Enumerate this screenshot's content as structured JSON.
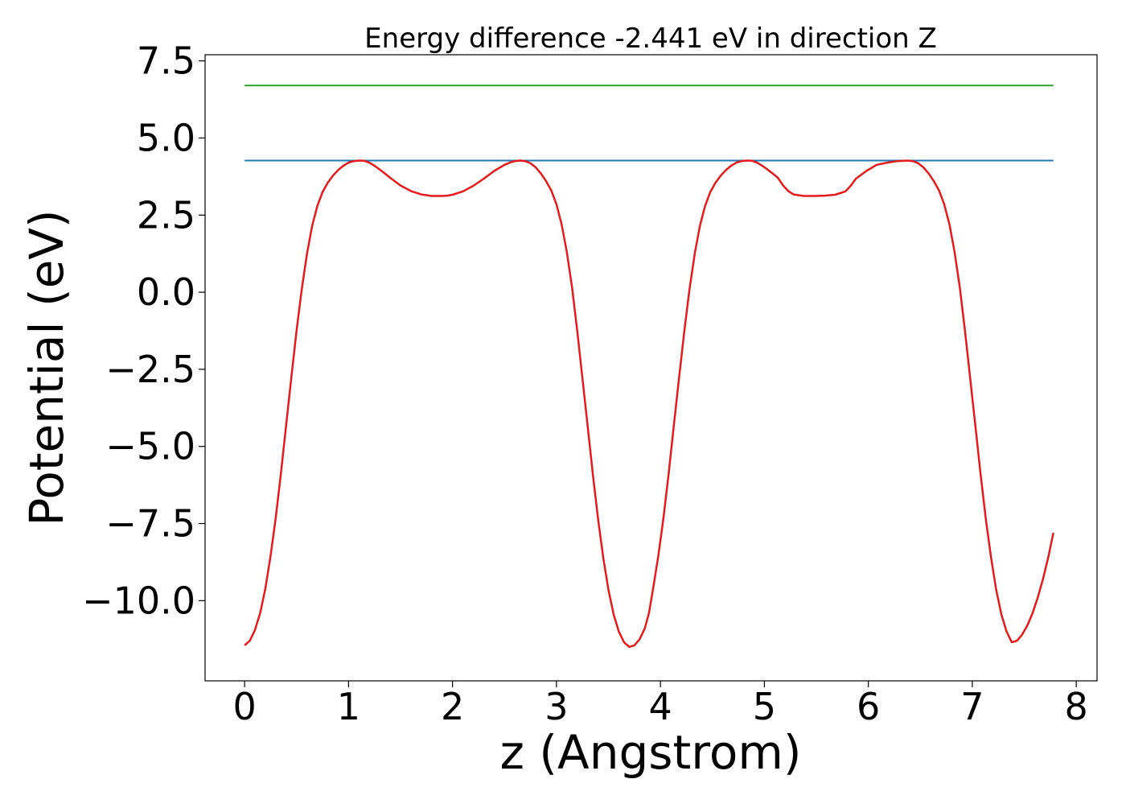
{
  "chart_data": {
    "type": "line",
    "title": "Energy difference -2.441 eV in direction Z",
    "xlabel": "z (Angstrom)",
    "ylabel": "Potential (eV)",
    "xlim": [
      -0.38,
      8.2
    ],
    "ylim": [
      -12.6,
      7.7
    ],
    "x_ticks": [
      0,
      1,
      2,
      3,
      4,
      5,
      6,
      7,
      8
    ],
    "x_tick_labels": [
      "0",
      "1",
      "2",
      "3",
      "4",
      "5",
      "6",
      "7",
      "8"
    ],
    "y_ticks": [
      7.5,
      5.0,
      2.5,
      0.0,
      -2.5,
      -5.0,
      -7.5,
      -10.0
    ],
    "y_tick_labels": [
      "7.5",
      "5.0",
      "2.5",
      "0.0",
      "−2.5",
      "−5.0",
      "−7.5",
      "−10.0"
    ],
    "grid": false,
    "series": [
      {
        "color": "#2ca02c",
        "x": [
          0,
          7.78
        ],
        "y": [
          6.7,
          6.7
        ]
      },
      {
        "color": "#1f77b4",
        "x": [
          0,
          7.78
        ],
        "y": [
          4.27,
          4.27
        ]
      },
      {
        "color": "#e41a1c",
        "x": [
          0.0,
          0.05,
          0.1,
          0.15,
          0.2,
          0.25,
          0.3,
          0.35,
          0.4,
          0.45,
          0.5,
          0.55,
          0.6,
          0.65,
          0.7,
          0.75,
          0.8,
          0.85,
          0.9,
          0.95,
          1.0,
          1.05,
          1.1,
          1.15,
          1.2,
          1.25,
          1.3,
          1.35,
          1.4,
          1.5,
          1.6,
          1.7,
          1.8,
          1.9,
          1.95,
          2.0,
          2.1,
          2.2,
          2.3,
          2.4,
          2.5,
          2.55,
          2.6,
          2.65,
          2.7,
          2.75,
          2.8,
          2.85,
          2.9,
          2.95,
          3.0,
          3.05,
          3.1,
          3.15,
          3.2,
          3.25,
          3.3,
          3.35,
          3.4,
          3.45,
          3.5,
          3.55,
          3.6,
          3.65,
          3.7,
          3.75,
          3.8,
          3.85,
          3.89,
          3.93,
          3.98,
          4.03,
          4.08,
          4.13,
          4.18,
          4.23,
          4.28,
          4.33,
          4.38,
          4.43,
          4.48,
          4.53,
          4.58,
          4.63,
          4.68,
          4.73,
          4.78,
          4.83,
          4.88,
          4.93,
          4.98,
          5.03,
          5.08,
          5.13,
          5.18,
          5.23,
          5.28,
          5.38,
          5.48,
          5.58,
          5.68,
          5.78,
          5.83,
          5.88,
          5.98,
          6.08,
          6.18,
          6.28,
          6.38,
          6.43,
          6.48,
          6.53,
          6.58,
          6.63,
          6.68,
          6.73,
          6.78,
          6.83,
          6.88,
          6.93,
          6.98,
          7.03,
          7.08,
          7.13,
          7.18,
          7.23,
          7.28,
          7.33,
          7.38,
          7.43,
          7.48,
          7.53,
          7.58,
          7.63,
          7.68,
          7.73,
          7.78
        ],
        "y": [
          -11.45,
          -11.3,
          -10.95,
          -10.4,
          -9.6,
          -8.55,
          -7.3,
          -5.85,
          -4.3,
          -2.75,
          -1.25,
          0.1,
          1.25,
          2.15,
          2.8,
          3.25,
          3.55,
          3.78,
          3.96,
          4.1,
          4.2,
          4.25,
          4.27,
          4.26,
          4.2,
          4.1,
          3.98,
          3.85,
          3.71,
          3.46,
          3.28,
          3.17,
          3.12,
          3.12,
          3.13,
          3.16,
          3.27,
          3.45,
          3.68,
          3.93,
          4.13,
          4.2,
          4.25,
          4.27,
          4.25,
          4.18,
          4.05,
          3.85,
          3.6,
          3.3,
          2.85,
          2.2,
          1.3,
          0.15,
          -1.25,
          -2.8,
          -4.35,
          -5.9,
          -7.35,
          -8.6,
          -9.65,
          -10.45,
          -11.0,
          -11.35,
          -11.5,
          -11.45,
          -11.25,
          -10.9,
          -10.4,
          -9.6,
          -8.55,
          -7.3,
          -5.85,
          -4.3,
          -2.75,
          -1.25,
          0.1,
          1.25,
          2.15,
          2.8,
          3.25,
          3.55,
          3.78,
          3.96,
          4.1,
          4.2,
          4.25,
          4.27,
          4.26,
          4.2,
          4.1,
          3.98,
          3.85,
          3.71,
          3.46,
          3.28,
          3.17,
          3.12,
          3.12,
          3.13,
          3.16,
          3.27,
          3.45,
          3.68,
          3.93,
          4.13,
          4.2,
          4.25,
          4.27,
          4.25,
          4.18,
          4.05,
          3.85,
          3.6,
          3.3,
          2.85,
          2.2,
          1.3,
          0.15,
          -1.25,
          -2.8,
          -4.35,
          -5.9,
          -7.35,
          -8.6,
          -9.65,
          -10.45,
          -11.0,
          -11.35,
          -11.3,
          -11.1,
          -10.8,
          -10.4,
          -9.9,
          -9.3,
          -8.6,
          -7.8
        ]
      }
    ]
  }
}
